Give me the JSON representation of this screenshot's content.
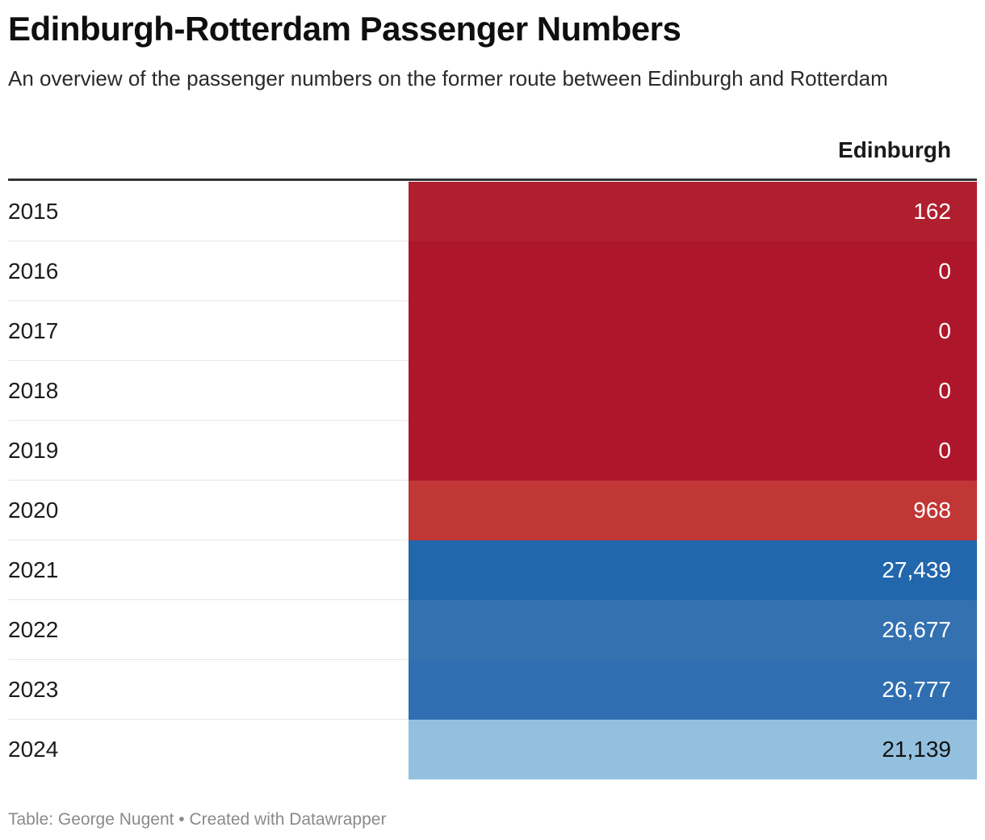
{
  "title": "Edinburgh-Rotterdam Passenger Numbers",
  "subtitle": "An overview of the passenger numbers on the former route between Edinburgh and Rotterdam",
  "footer": "Table: George Nugent • Created with Datawrapper",
  "chart_data": {
    "type": "table",
    "title": "Edinburgh-Rotterdam Passenger Numbers",
    "subtitle": "An overview of the passenger numbers on the former route between Edinburgh and Rotterdam",
    "columns": [
      "",
      "Edinburgh"
    ],
    "column_header": "Edinburgh",
    "rows": [
      {
        "year": "2015",
        "value": 162,
        "display": "162",
        "bg": "#b01f2e",
        "fg": "#ffffff"
      },
      {
        "year": "2016",
        "value": 0,
        "display": "0",
        "bg": "#ae172b",
        "fg": "#ffffff"
      },
      {
        "year": "2017",
        "value": 0,
        "display": "0",
        "bg": "#ae172b",
        "fg": "#ffffff"
      },
      {
        "year": "2018",
        "value": 0,
        "display": "0",
        "bg": "#ae172b",
        "fg": "#ffffff"
      },
      {
        "year": "2019",
        "value": 0,
        "display": "0",
        "bg": "#ae172b",
        "fg": "#ffffff"
      },
      {
        "year": "2020",
        "value": 968,
        "display": "968",
        "bg": "#c03736",
        "fg": "#ffffff"
      },
      {
        "year": "2021",
        "value": 27439,
        "display": "27,439",
        "bg": "#2266ab",
        "fg": "#ffffff"
      },
      {
        "year": "2022",
        "value": 26677,
        "display": "26,677",
        "bg": "#3371b1",
        "fg": "#ffffff"
      },
      {
        "year": "2023",
        "value": 26777,
        "display": "26,777",
        "bg": "#2f6eb0",
        "fg": "#ffffff"
      },
      {
        "year": "2024",
        "value": 21139,
        "display": "21,139",
        "bg": "#93c0de",
        "fg": "#111111"
      }
    ]
  }
}
